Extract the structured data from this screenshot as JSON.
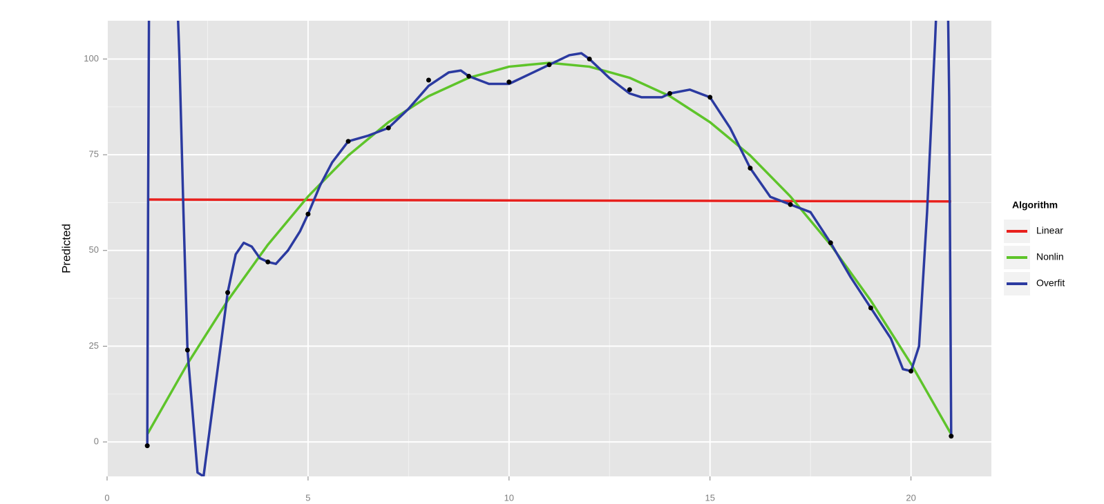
{
  "chart_data": {
    "type": "line",
    "y_label": "Predicted",
    "legend_title": "Algorithm",
    "legend": "right",
    "grid": true,
    "xlim": [
      0,
      22
    ],
    "xticks": [
      0,
      5,
      10,
      15,
      20
    ],
    "ylim": [
      -9,
      110
    ],
    "yticks": [
      0,
      25,
      50,
      75,
      100
    ],
    "points": {
      "color": "#000000",
      "x": [
        1,
        2,
        3,
        4,
        5,
        6,
        7,
        8,
        9,
        10,
        11,
        12,
        13,
        14,
        15,
        16,
        17,
        18,
        19,
        20,
        21
      ],
      "values": [
        -1,
        24,
        39,
        47,
        59.5,
        78.5,
        82,
        94.5,
        95.5,
        94,
        98.5,
        100,
        92,
        91,
        90,
        71.5,
        62,
        52,
        35,
        18.5,
        1.5
      ]
    },
    "series": [
      {
        "name": "Linear",
        "color": "#e8201d",
        "x": [
          1,
          21
        ],
        "values": [
          63.3,
          62.8
        ]
      },
      {
        "name": "Nonlin",
        "color": "#5ec42a",
        "x": [
          1,
          2,
          3,
          4,
          5,
          6,
          7,
          8,
          9,
          10,
          11,
          12,
          13,
          14,
          15,
          16,
          17,
          18,
          19,
          20,
          21
        ],
        "values": [
          2,
          20.4,
          36.9,
          51.5,
          64.1,
          74.8,
          83.5,
          90.3,
          95.1,
          98,
          99,
          98,
          95.1,
          90.3,
          83.5,
          74.8,
          64.1,
          51.5,
          36.9,
          20.4,
          2
        ]
      },
      {
        "name": "Overfit",
        "color": "#2b3aa0",
        "x": [
          1,
          1.02,
          1.05,
          1.7,
          1.8,
          1.9,
          2,
          2.25,
          2.4,
          2.7,
          3,
          3.2,
          3.4,
          3.6,
          3.8,
          4,
          4.2,
          4.5,
          4.8,
          5,
          5.3,
          5.6,
          6,
          6.5,
          7,
          7.5,
          8,
          8.5,
          8.8,
          9,
          9.5,
          10,
          10.5,
          11,
          11.5,
          11.8,
          12,
          12.5,
          13,
          13.3,
          13.8,
          14,
          14.5,
          15,
          15.5,
          16,
          16.5,
          17,
          17.5,
          18,
          18.5,
          19,
          19.5,
          19.8,
          20,
          20.2,
          20.4,
          20.6,
          20.7,
          20.9,
          20.95,
          21
        ],
        "values": [
          -1,
          60,
          130,
          130,
          100,
          60,
          24,
          -8,
          -9,
          15,
          39,
          49,
          52,
          51,
          48,
          47,
          46.5,
          50,
          55,
          59.5,
          67,
          73,
          78.5,
          80,
          82,
          87,
          93,
          96.5,
          97,
          95.5,
          93.5,
          93.5,
          96,
          98.5,
          101,
          101.5,
          100,
          95,
          91,
          90,
          90,
          91,
          92,
          90,
          82,
          71.5,
          64,
          62,
          60,
          52,
          43,
          35,
          27,
          19,
          18.5,
          25,
          60,
          105,
          130,
          130,
          90,
          1.5
        ]
      }
    ]
  }
}
